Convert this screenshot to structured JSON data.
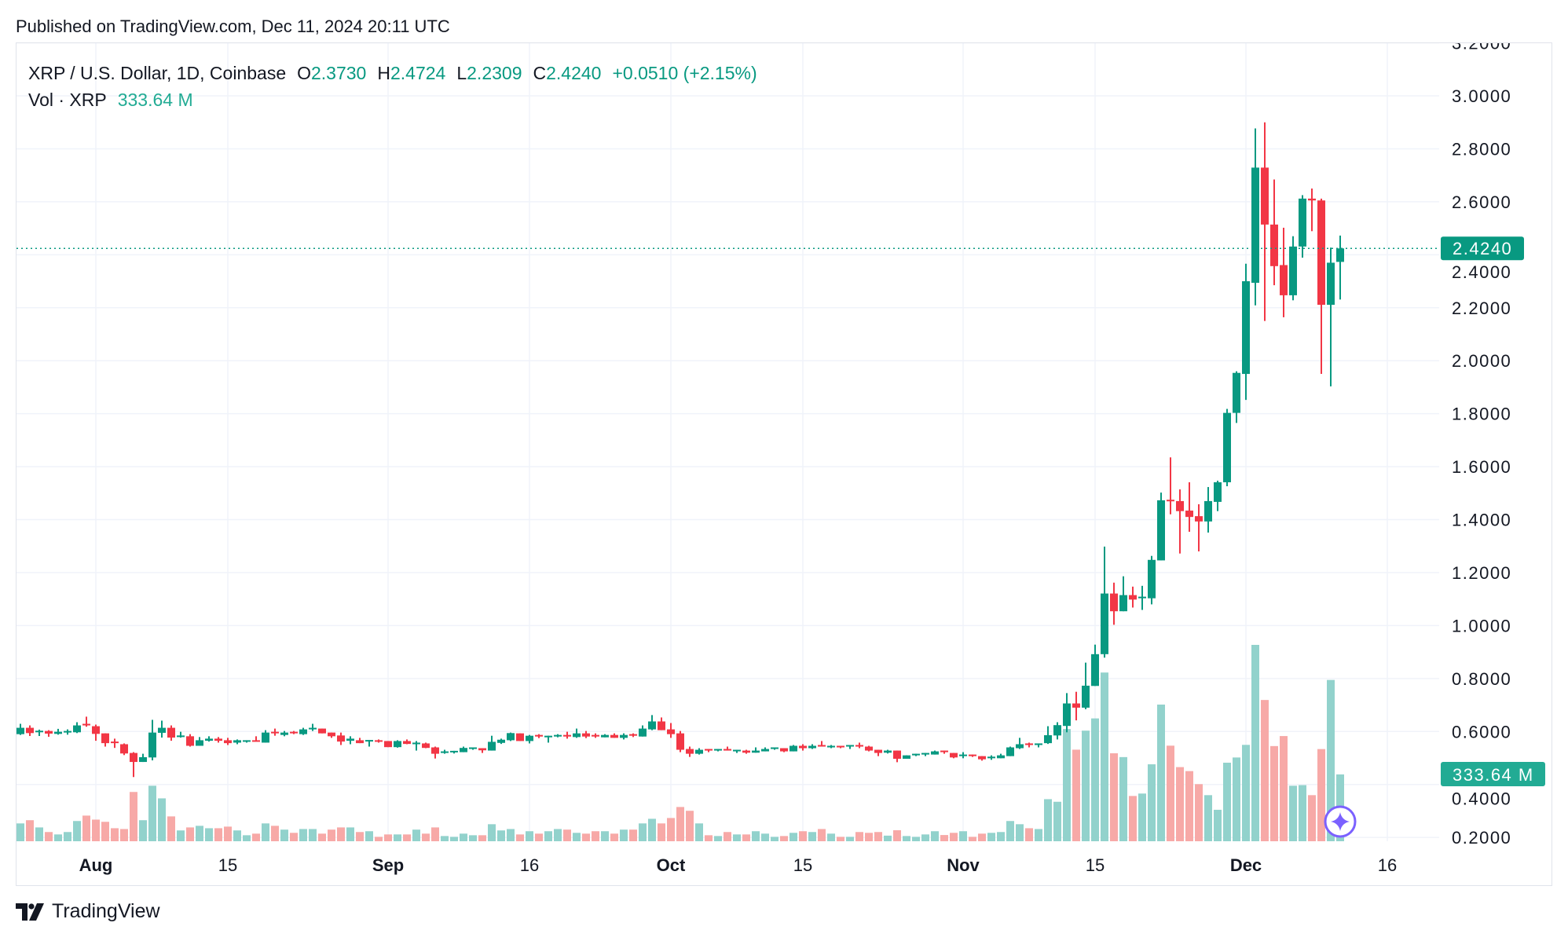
{
  "header": {
    "published": "Published on TradingView.com, Dec 11, 2024 20:11 UTC"
  },
  "legend": {
    "symbol": "XRP / U.S. Dollar, 1D, Coinbase",
    "open_label": "O",
    "open": "2.3730",
    "high_label": "H",
    "high": "2.4724",
    "low_label": "L",
    "low": "2.2309",
    "close_label": "C",
    "close": "2.4240",
    "change": "+0.0510 (+2.15%)",
    "volume_label": "Vol · XRP",
    "volume": "333.64 M"
  },
  "footer": {
    "brand": "TradingView",
    "logo_icon": "tradingview-logo-icon"
  },
  "colors": {
    "up": "#089981",
    "down": "#f23645",
    "volume_up": "#92d2cc",
    "volume_down": "#f7a9a7",
    "last_price": "#089981",
    "volume_badge": "#22ab94",
    "marker": "#7b61ff"
  },
  "chart_data": {
    "type": "candlestick",
    "title": "",
    "xlabel": "",
    "ylabel": "",
    "ylim": [
      0.2,
      3.2
    ],
    "grid": true,
    "y_ticks": [
      "3.2000",
      "3.0000",
      "2.8000",
      "2.6000",
      "2.4000",
      "2.2000",
      "2.0000",
      "1.8000",
      "1.6000",
      "1.4000",
      "1.2000",
      "1.0000",
      "0.8000",
      "0.6000",
      "0.4000",
      "0.2000"
    ],
    "x_ticks": [
      {
        "label": "Aug",
        "date": "Aug 1",
        "bold": true
      },
      {
        "label": "15",
        "date": "Aug 15",
        "bold": false
      },
      {
        "label": "Sep",
        "date": "Sep 1",
        "bold": true
      },
      {
        "label": "16",
        "date": "Sep 16",
        "bold": false
      },
      {
        "label": "Oct",
        "date": "Oct 1",
        "bold": true
      },
      {
        "label": "15",
        "date": "Oct 15",
        "bold": false
      },
      {
        "label": "Nov",
        "date": "Nov 1",
        "bold": true
      },
      {
        "label": "15",
        "date": "Nov 15",
        "bold": false
      },
      {
        "label": "Dec",
        "date": "Dec 1",
        "bold": true
      },
      {
        "label": "16",
        "date": "Dec 16",
        "bold": false
      }
    ],
    "last_price": {
      "value": 2.424,
      "label": "2.4240"
    },
    "last_volume": {
      "value": 333.64,
      "label": "333.64 M"
    },
    "volume_unit": "M",
    "columns": [
      "date",
      "open",
      "high",
      "low",
      "close",
      "volume"
    ],
    "candles": [
      [
        "Jul 24",
        0.59,
        0.629,
        0.587,
        0.614,
        89
      ],
      [
        "Jul 25",
        0.614,
        0.623,
        0.583,
        0.594,
        105
      ],
      [
        "Jul 26",
        0.599,
        0.607,
        0.583,
        0.603,
        69
      ],
      [
        "Jul 27",
        0.602,
        0.605,
        0.58,
        0.592,
        46
      ],
      [
        "Jul 28",
        0.591,
        0.61,
        0.588,
        0.599,
        34
      ],
      [
        "Jul 29",
        0.597,
        0.608,
        0.588,
        0.602,
        46
      ],
      [
        "Jul 30",
        0.597,
        0.635,
        0.594,
        0.623,
        101
      ],
      [
        "Jul 31",
        0.629,
        0.656,
        0.618,
        0.623,
        128
      ],
      [
        "Aug 1",
        0.62,
        0.626,
        0.565,
        0.591,
        108
      ],
      [
        "Aug 2",
        0.593,
        0.593,
        0.543,
        0.556,
        97
      ],
      [
        "Aug 3",
        0.562,
        0.573,
        0.538,
        0.556,
        65
      ],
      [
        "Aug 4",
        0.552,
        0.555,
        0.511,
        0.517,
        61
      ],
      [
        "Aug 5",
        0.519,
        0.522,
        0.428,
        0.485,
        246
      ],
      [
        "Aug 6",
        0.485,
        0.516,
        0.485,
        0.503,
        105
      ],
      [
        "Aug 7",
        0.502,
        0.644,
        0.491,
        0.596,
        277
      ],
      [
        "Aug 8",
        0.595,
        0.641,
        0.577,
        0.614,
        214
      ],
      [
        "Aug 9",
        0.614,
        0.623,
        0.565,
        0.577,
        124
      ],
      [
        "Aug 10",
        0.579,
        0.599,
        0.577,
        0.585,
        54
      ],
      [
        "Aug 11",
        0.582,
        0.59,
        0.543,
        0.546,
        69
      ],
      [
        "Aug 12",
        0.546,
        0.579,
        0.546,
        0.567,
        77
      ],
      [
        "Aug 13",
        0.565,
        0.582,
        0.562,
        0.573,
        65
      ],
      [
        "Aug 14",
        0.573,
        0.579,
        0.558,
        0.565,
        65
      ],
      [
        "Aug 15",
        0.567,
        0.576,
        0.549,
        0.556,
        73
      ],
      [
        "Aug 16",
        0.558,
        0.57,
        0.552,
        0.567,
        54
      ],
      [
        "Aug 17",
        0.562,
        0.567,
        0.558,
        0.567,
        30
      ],
      [
        "Aug 18",
        0.567,
        0.582,
        0.562,
        0.562,
        38
      ],
      [
        "Aug 19",
        0.558,
        0.605,
        0.558,
        0.596,
        89
      ],
      [
        "Aug 20",
        0.599,
        0.611,
        0.584,
        0.593,
        77
      ],
      [
        "Aug 21",
        0.587,
        0.602,
        0.582,
        0.596,
        58
      ],
      [
        "Aug 22",
        0.599,
        0.602,
        0.59,
        0.593,
        42
      ],
      [
        "Aug 23",
        0.59,
        0.614,
        0.587,
        0.608,
        61
      ],
      [
        "Aug 24",
        0.608,
        0.629,
        0.602,
        0.614,
        61
      ],
      [
        "Aug 25",
        0.611,
        0.611,
        0.593,
        0.593,
        38
      ],
      [
        "Aug 26",
        0.596,
        0.596,
        0.576,
        0.582,
        58
      ],
      [
        "Aug 27",
        0.585,
        0.596,
        0.549,
        0.562,
        69
      ],
      [
        "Aug 28",
        0.565,
        0.582,
        0.552,
        0.573,
        69
      ],
      [
        "Aug 29",
        0.567,
        0.576,
        0.556,
        0.556,
        46
      ],
      [
        "Aug 30",
        0.565,
        0.568,
        0.543,
        0.568,
        50
      ],
      [
        "Aug 31",
        0.567,
        0.57,
        0.558,
        0.562,
        22
      ],
      [
        "Sep 1",
        0.564,
        0.564,
        0.541,
        0.541,
        34
      ],
      [
        "Sep 2",
        0.541,
        0.567,
        0.539,
        0.564,
        34
      ],
      [
        "Sep 3",
        0.564,
        0.57,
        0.552,
        0.553,
        34
      ],
      [
        "Sep 4",
        0.552,
        0.564,
        0.528,
        0.558,
        58
      ],
      [
        "Sep 5",
        0.555,
        0.558,
        0.537,
        0.538,
        38
      ],
      [
        "Sep 6",
        0.54,
        0.543,
        0.498,
        0.516,
        69
      ],
      [
        "Sep 7",
        0.519,
        0.531,
        0.516,
        0.525,
        26
      ],
      [
        "Sep 8",
        0.525,
        0.527,
        0.517,
        0.527,
        22
      ],
      [
        "Sep 9",
        0.522,
        0.543,
        0.522,
        0.538,
        38
      ],
      [
        "Sep 10",
        0.534,
        0.54,
        0.531,
        0.54,
        30
      ],
      [
        "Sep 11",
        0.537,
        0.537,
        0.519,
        0.529,
        30
      ],
      [
        "Sep 12",
        0.528,
        0.584,
        0.528,
        0.561,
        85
      ],
      [
        "Sep 13",
        0.557,
        0.573,
        0.553,
        0.569,
        54
      ],
      [
        "Sep 14",
        0.567,
        0.596,
        0.564,
        0.594,
        61
      ],
      [
        "Sep 15",
        0.593,
        0.593,
        0.564,
        0.564,
        34
      ],
      [
        "Sep 16",
        0.564,
        0.587,
        0.555,
        0.584,
        50
      ],
      [
        "Sep 17",
        0.587,
        0.59,
        0.575,
        0.581,
        38
      ],
      [
        "Sep 18",
        0.578,
        0.584,
        0.558,
        0.584,
        50
      ],
      [
        "Sep 19",
        0.581,
        0.59,
        0.578,
        0.587,
        61
      ],
      [
        "Sep 20",
        0.587,
        0.599,
        0.573,
        0.581,
        58
      ],
      [
        "Sep 21",
        0.579,
        0.611,
        0.576,
        0.593,
        42
      ],
      [
        "Sep 22",
        0.593,
        0.602,
        0.575,
        0.581,
        38
      ],
      [
        "Sep 23",
        0.587,
        0.593,
        0.576,
        0.581,
        50
      ],
      [
        "Sep 24",
        0.578,
        0.59,
        0.578,
        0.587,
        50
      ],
      [
        "Sep 25",
        0.587,
        0.593,
        0.576,
        0.576,
        38
      ],
      [
        "Sep 26",
        0.576,
        0.593,
        0.57,
        0.587,
        58
      ],
      [
        "Sep 27",
        0.59,
        0.593,
        0.579,
        0.584,
        58
      ],
      [
        "Sep 28",
        0.581,
        0.623,
        0.581,
        0.611,
        89
      ],
      [
        "Sep 29",
        0.608,
        0.662,
        0.605,
        0.638,
        112
      ],
      [
        "Sep 30",
        0.638,
        0.653,
        0.605,
        0.605,
        89
      ],
      [
        "Oct 1",
        0.608,
        0.632,
        0.576,
        0.59,
        116
      ],
      [
        "Oct 2",
        0.593,
        0.602,
        0.522,
        0.531,
        171
      ],
      [
        "Oct 3",
        0.534,
        0.543,
        0.504,
        0.516,
        152
      ],
      [
        "Oct 4",
        0.516,
        0.537,
        0.513,
        0.531,
        89
      ],
      [
        "Oct 5",
        0.534,
        0.534,
        0.522,
        0.528,
        30
      ],
      [
        "Oct 6",
        0.528,
        0.534,
        0.525,
        0.534,
        26
      ],
      [
        "Oct 7",
        0.534,
        0.543,
        0.528,
        0.528,
        46
      ],
      [
        "Oct 8",
        0.526,
        0.531,
        0.519,
        0.531,
        34
      ],
      [
        "Oct 9",
        0.528,
        0.531,
        0.516,
        0.52,
        34
      ],
      [
        "Oct 10",
        0.52,
        0.54,
        0.52,
        0.528,
        50
      ],
      [
        "Oct 11",
        0.525,
        0.54,
        0.525,
        0.534,
        38
      ],
      [
        "Oct 12",
        0.534,
        0.54,
        0.531,
        0.54,
        22
      ],
      [
        "Oct 13",
        0.537,
        0.537,
        0.522,
        0.525,
        26
      ],
      [
        "Oct 14",
        0.525,
        0.549,
        0.525,
        0.546,
        42
      ],
      [
        "Oct 15",
        0.546,
        0.552,
        0.528,
        0.537,
        50
      ],
      [
        "Oct 16",
        0.537,
        0.552,
        0.534,
        0.546,
        46
      ],
      [
        "Oct 17",
        0.549,
        0.564,
        0.543,
        0.543,
        61
      ],
      [
        "Oct 18",
        0.54,
        0.549,
        0.537,
        0.546,
        38
      ],
      [
        "Oct 19",
        0.546,
        0.546,
        0.537,
        0.54,
        22
      ],
      [
        "Oct 20",
        0.543,
        0.549,
        0.534,
        0.549,
        22
      ],
      [
        "Oct 21",
        0.549,
        0.558,
        0.537,
        0.543,
        46
      ],
      [
        "Oct 22",
        0.543,
        0.546,
        0.525,
        0.528,
        42
      ],
      [
        "Oct 23",
        0.531,
        0.531,
        0.507,
        0.519,
        46
      ],
      [
        "Oct 24",
        0.52,
        0.531,
        0.517,
        0.528,
        28
      ],
      [
        "Oct 25",
        0.528,
        0.528,
        0.484,
        0.497,
        55
      ],
      [
        "Oct 26",
        0.497,
        0.51,
        0.497,
        0.51,
        26
      ],
      [
        "Oct 27",
        0.51,
        0.516,
        0.507,
        0.516,
        22
      ],
      [
        "Oct 28",
        0.513,
        0.519,
        0.507,
        0.519,
        34
      ],
      [
        "Oct 29",
        0.513,
        0.528,
        0.513,
        0.525,
        50
      ],
      [
        "Oct 30",
        0.528,
        0.528,
        0.516,
        0.522,
        31
      ],
      [
        "Oct 31",
        0.519,
        0.519,
        0.499,
        0.502,
        42
      ],
      [
        "Nov 1",
        0.507,
        0.522,
        0.499,
        0.513,
        50
      ],
      [
        "Nov 2",
        0.513,
        0.513,
        0.504,
        0.507,
        22
      ],
      [
        "Nov 3",
        0.507,
        0.507,
        0.49,
        0.495,
        38
      ],
      [
        "Nov 4",
        0.499,
        0.51,
        0.493,
        0.505,
        42
      ],
      [
        "Nov 5",
        0.499,
        0.516,
        0.499,
        0.51,
        46
      ],
      [
        "Nov 6",
        0.507,
        0.543,
        0.507,
        0.54,
        101
      ],
      [
        "Nov 7",
        0.537,
        0.576,
        0.534,
        0.552,
        85
      ],
      [
        "Nov 8",
        0.555,
        0.558,
        0.54,
        0.549,
        65
      ],
      [
        "Nov 9",
        0.549,
        0.555,
        0.54,
        0.555,
        61
      ],
      [
        "Nov 10",
        0.556,
        0.62,
        0.553,
        0.586,
        210
      ],
      [
        "Nov 11",
        0.585,
        0.635,
        0.57,
        0.624,
        197
      ],
      [
        "Nov 12",
        0.621,
        0.745,
        0.597,
        0.706,
        560
      ],
      [
        "Nov 13",
        0.706,
        0.75,
        0.642,
        0.69,
        457
      ],
      [
        "Nov 14",
        0.69,
        0.86,
        0.684,
        0.773,
        552
      ],
      [
        "Nov 15",
        0.772,
        0.928,
        0.772,
        0.892,
        613
      ],
      [
        "Nov 16",
        0.892,
        1.298,
        0.879,
        1.121,
        842
      ],
      [
        "Nov 17",
        1.121,
        1.162,
        1.003,
        1.054,
        439
      ],
      [
        "Nov 18",
        1.054,
        1.186,
        1.054,
        1.115,
        420
      ],
      [
        "Nov 19",
        1.115,
        1.147,
        1.068,
        1.098,
        226
      ],
      [
        "Nov 20",
        1.105,
        1.15,
        1.059,
        1.109,
        238
      ],
      [
        "Nov 21",
        1.103,
        1.263,
        1.08,
        1.248,
        384
      ],
      [
        "Nov 22",
        1.246,
        1.502,
        1.246,
        1.473,
        682
      ],
      [
        "Nov 23",
        1.475,
        1.635,
        1.42,
        1.471,
        477
      ],
      [
        "Nov 24",
        1.47,
        1.514,
        1.272,
        1.432,
        370
      ],
      [
        "Nov 25",
        1.434,
        1.541,
        1.354,
        1.41,
        350
      ],
      [
        "Nov 26",
        1.413,
        1.458,
        1.28,
        1.393,
        285
      ],
      [
        "Nov 27",
        1.393,
        1.523,
        1.351,
        1.47,
        230
      ],
      [
        "Nov 28",
        1.467,
        1.547,
        1.432,
        1.541,
        157
      ],
      [
        "Nov 29",
        1.541,
        1.818,
        1.526,
        1.803,
        392
      ],
      [
        "Nov 30",
        1.803,
        1.96,
        1.765,
        1.954,
        418
      ],
      [
        "Dec 1",
        1.95,
        2.366,
        1.852,
        2.3,
        481
      ],
      [
        "Dec 2",
        2.294,
        2.877,
        2.209,
        2.729,
        980
      ],
      [
        "Dec 3",
        2.729,
        2.9,
        2.15,
        2.514,
        705
      ],
      [
        "Dec 4",
        2.514,
        2.684,
        2.285,
        2.357,
        475
      ],
      [
        "Dec 5",
        2.361,
        2.502,
        2.164,
        2.247,
        525
      ],
      [
        "Dec 6",
        2.247,
        2.47,
        2.228,
        2.431,
        277
      ],
      [
        "Dec 7",
        2.431,
        2.625,
        2.389,
        2.612,
        280
      ],
      [
        "Dec 8",
        2.612,
        2.65,
        2.489,
        2.605,
        230
      ],
      [
        "Dec 9",
        2.605,
        2.612,
        1.95,
        2.211,
        460
      ],
      [
        "Dec 10",
        2.211,
        2.427,
        1.903,
        2.37,
        805
      ],
      [
        "Dec 11",
        2.373,
        2.4724,
        2.2309,
        2.424,
        333.64
      ]
    ]
  }
}
